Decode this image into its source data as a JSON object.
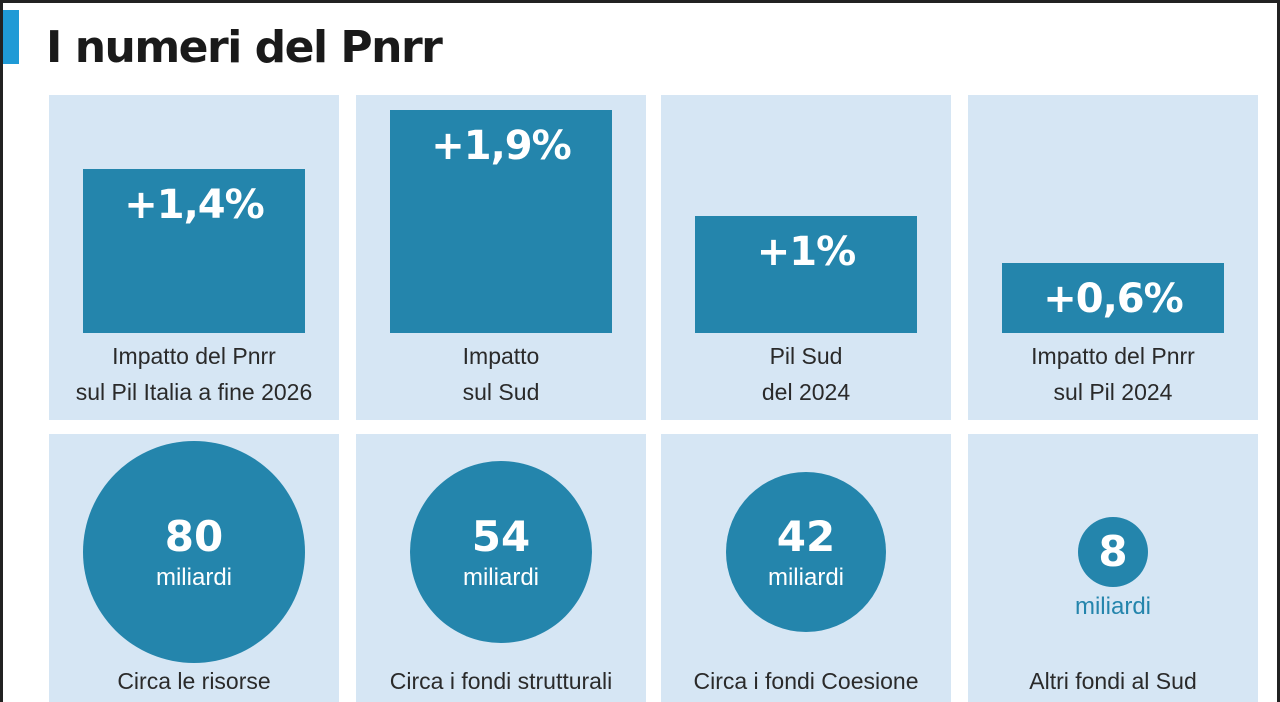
{
  "title": "I numeri del Pnrr",
  "colors": {
    "accent": "#1f9ad6",
    "panel": "#d6e6f4",
    "bar": "#2485ac",
    "text": "#2a2a2a"
  },
  "chart_data": [
    {
      "type": "bar",
      "categories": [
        [
          "Impatto del Pnrr",
          "sul Pil Italia a fine 2026"
        ],
        [
          "Impatto",
          "sul Sud"
        ],
        [
          "Pil Sud",
          "del 2024"
        ],
        [
          "Impatto del Pnrr",
          "sul Pil 2024"
        ]
      ],
      "values": [
        1.4,
        1.9,
        1.0,
        0.6
      ],
      "value_labels": [
        "+1,4%",
        "+1,9%",
        "+1%",
        "+0,6%"
      ],
      "unit": "%"
    },
    {
      "type": "bubble",
      "values": [
        80,
        54,
        42,
        8
      ],
      "value_labels": [
        "80",
        "54",
        "42",
        "8"
      ],
      "unit_label": "miliardi",
      "captions": [
        "Circa le risorse",
        "Circa i fondi strutturali",
        "Circa i fondi Coesione",
        "Altri fondi al Sud"
      ]
    }
  ]
}
